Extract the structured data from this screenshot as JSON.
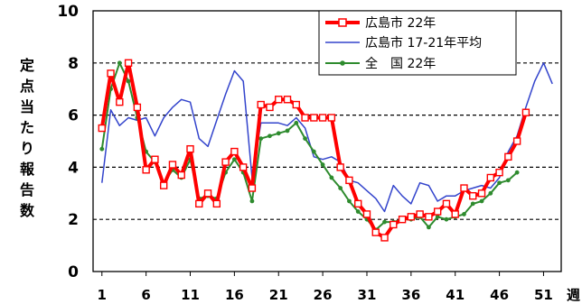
{
  "chart_data": {
    "type": "line",
    "ylabel": "定点当たり報告数",
    "x_unit": "週",
    "ylim": [
      0,
      10
    ],
    "yticks": [
      "0",
      "2",
      "4",
      "6",
      "8",
      "10"
    ],
    "xlim": [
      0,
      53
    ],
    "xticks": [
      "1",
      "6",
      "11",
      "16",
      "21",
      "26",
      "31",
      "36",
      "41",
      "46",
      "51"
    ],
    "grid": "dashed horizontal",
    "legend": "top-right",
    "series": [
      {
        "name": "広島市 17-21年平均",
        "color": "#3344cc",
        "x": [
          1,
          2,
          3,
          4,
          5,
          6,
          7,
          8,
          9,
          10,
          11,
          12,
          13,
          14,
          15,
          16,
          17,
          18,
          19,
          20,
          21,
          22,
          23,
          24,
          25,
          26,
          27,
          28,
          29,
          30,
          31,
          32,
          33,
          34,
          35,
          36,
          37,
          38,
          39,
          40,
          41,
          42,
          43,
          44,
          45,
          46,
          47,
          48,
          49,
          50,
          51,
          52
        ],
        "values": [
          3.4,
          6.2,
          5.6,
          5.9,
          5.8,
          5.9,
          5.2,
          5.9,
          6.3,
          6.6,
          6.5,
          5.1,
          4.8,
          5.8,
          6.8,
          7.7,
          7.3,
          3.6,
          5.7,
          5.7,
          5.7,
          5.6,
          5.9,
          5.5,
          4.4,
          4.3,
          4.4,
          4.2,
          3.5,
          3.4,
          3.1,
          2.8,
          2.3,
          3.3,
          2.9,
          2.6,
          3.4,
          3.3,
          2.7,
          2.9,
          2.9,
          3.1,
          3.2,
          3.3,
          3.2,
          3.6,
          4.6,
          5.2,
          6.3,
          7.3,
          8.0,
          7.2
        ]
      },
      {
        "name": "全　国 22年",
        "color": "#2e8b2e",
        "x": [
          1,
          2,
          3,
          4,
          5,
          6,
          7,
          8,
          9,
          10,
          11,
          12,
          13,
          14,
          15,
          16,
          17,
          18,
          19,
          20,
          21,
          22,
          23,
          24,
          25,
          26,
          27,
          28,
          29,
          30,
          31,
          32,
          33,
          34,
          35,
          36,
          37,
          38,
          39,
          40,
          41,
          42,
          43,
          44,
          45,
          46,
          47,
          48
        ],
        "values": [
          4.7,
          7.0,
          8.0,
          7.3,
          5.9,
          4.6,
          4.2,
          3.4,
          3.9,
          3.6,
          4.3,
          2.8,
          2.9,
          2.8,
          3.8,
          4.3,
          3.8,
          2.7,
          5.1,
          5.2,
          5.3,
          5.4,
          5.7,
          5.1,
          4.6,
          4.1,
          3.6,
          3.2,
          2.7,
          2.3,
          2.0,
          1.6,
          1.9,
          1.9,
          2.0,
          2.0,
          2.1,
          1.7,
          2.1,
          2.0,
          2.1,
          2.2,
          2.6,
          2.7,
          3.0,
          3.4,
          3.5,
          3.8
        ]
      },
      {
        "name": "広島市 22年",
        "color": "#ff0000",
        "x": [
          1,
          2,
          3,
          4,
          5,
          6,
          7,
          8,
          9,
          10,
          11,
          12,
          13,
          14,
          15,
          16,
          17,
          18,
          19,
          20,
          21,
          22,
          23,
          24,
          25,
          26,
          27,
          28,
          29,
          30,
          31,
          32,
          33,
          34,
          35,
          36,
          37,
          38,
          39,
          40,
          41,
          42,
          43,
          44,
          45,
          46,
          47,
          48,
          49
        ],
        "values": [
          5.5,
          7.6,
          6.5,
          8.0,
          6.3,
          3.9,
          4.3,
          3.3,
          4.1,
          3.7,
          4.7,
          2.6,
          3.0,
          2.6,
          4.2,
          4.6,
          4.0,
          3.2,
          6.4,
          6.3,
          6.6,
          6.6,
          6.4,
          5.9,
          5.9,
          5.9,
          5.9,
          4.0,
          3.5,
          2.6,
          2.2,
          1.5,
          1.3,
          1.8,
          2.0,
          2.1,
          2.2,
          2.1,
          2.3,
          2.6,
          2.2,
          3.2,
          2.9,
          3.0,
          3.6,
          3.8,
          4.4,
          5.0,
          6.1
        ]
      }
    ]
  }
}
